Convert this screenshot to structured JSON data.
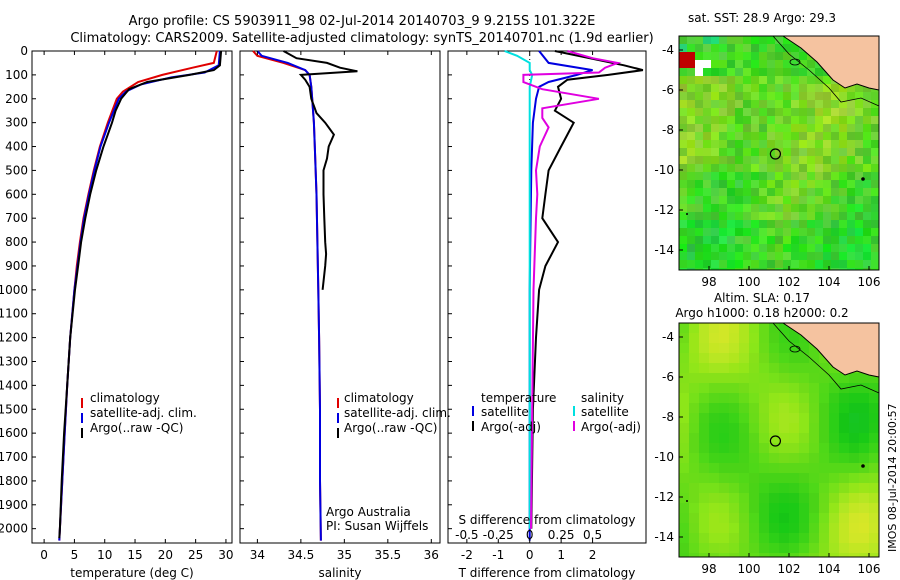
{
  "header": {
    "line1": "Argo profile: CS 5903911_98 02-Jul-2014 20140703_9 9.215S 101.322E",
    "line2": "Climatology: CARS2009. Satellite-adjusted climatology: synTS_20140701.nc (1.9d earlier)"
  },
  "colors": {
    "climatology": "#e00000",
    "satellite": "#0000e0",
    "argo": "#000000",
    "sal_satellite": "#00e0e0",
    "sal_argo": "#e000e0",
    "land": "#f5c3a0"
  },
  "chart_data": [
    {
      "type": "line",
      "name": "temperature-profile",
      "xlabel": "temperature (deg C)",
      "ylabel": "",
      "xticks": [
        "0",
        "5",
        "10",
        "15",
        "20",
        "25",
        "30"
      ],
      "yticks": [
        "0",
        "100",
        "200",
        "300",
        "400",
        "500",
        "600",
        "700",
        "800",
        "900",
        "1000",
        "1100",
        "1200",
        "1300",
        "1400",
        "1500",
        "1600",
        "1700",
        "1800",
        "1900",
        "2000"
      ],
      "xlim": [
        -2,
        31
      ],
      "ylim": [
        2060,
        0
      ],
      "legend": [
        "climatology",
        "satellite-adj. clim.",
        "Argo(..raw -QC)"
      ],
      "legend_position": "lower-right",
      "series": [
        {
          "name": "climatology",
          "depth": [
            0,
            50,
            70,
            100,
            130,
            170,
            200,
            300,
            400,
            500,
            600,
            700,
            800,
            900,
            1000,
            1200,
            1400,
            1600,
            1800,
            2000,
            2050
          ],
          "values": [
            28.5,
            28.0,
            24.5,
            19.5,
            15.5,
            13.0,
            12.0,
            10.5,
            9.2,
            8.2,
            7.3,
            6.5,
            5.9,
            5.4,
            5.0,
            4.3,
            3.8,
            3.4,
            3.0,
            2.6,
            2.5
          ]
        },
        {
          "name": "satellite-adj. clim.",
          "depth": [
            0,
            60,
            90,
            110,
            140,
            170,
            200,
            300,
            400,
            500,
            600,
            700,
            800,
            900,
            1000,
            1200,
            1400,
            1600,
            1800,
            2000,
            2050
          ],
          "values": [
            29.0,
            28.8,
            26.5,
            21.0,
            16.0,
            13.5,
            12.3,
            10.7,
            9.3,
            8.3,
            7.4,
            6.6,
            6.0,
            5.5,
            5.0,
            4.3,
            3.8,
            3.4,
            3.0,
            2.6,
            2.5
          ]
        },
        {
          "name": "Argo(..raw -QC)",
          "depth": [
            0,
            60,
            80,
            100,
            130,
            160,
            200,
            250,
            300,
            350,
            400,
            500,
            600,
            700,
            800,
            900,
            1000,
            1200,
            1400,
            1600,
            1800,
            2000,
            2040
          ],
          "values": [
            29.2,
            29.0,
            28.0,
            24.0,
            17.0,
            14.0,
            12.7,
            11.8,
            11.2,
            10.5,
            9.8,
            8.6,
            7.6,
            6.8,
            6.1,
            5.6,
            5.1,
            4.3,
            3.8,
            3.3,
            2.9,
            2.6,
            2.5
          ]
        }
      ]
    },
    {
      "type": "line",
      "name": "salinity-profile",
      "xlabel": "salinity",
      "xticks": [
        "34",
        "34.5",
        "35",
        "35.5",
        "36"
      ],
      "xlim": [
        33.8,
        36.1
      ],
      "ylim": [
        2060,
        0
      ],
      "legend": [
        "climatology",
        "satellite-adj. clim.",
        "Argo(..raw -QC)"
      ],
      "legend_position": "lower-right",
      "annotation": [
        "Argo Australia",
        "PI: Susan Wijffels"
      ],
      "series": [
        {
          "name": "climatology",
          "depth": [
            0,
            20,
            50,
            80,
            100,
            150,
            200,
            300,
            400,
            600,
            800,
            1000,
            1200,
            1500,
            1800,
            2050
          ],
          "values": [
            33.95,
            34.0,
            34.3,
            34.55,
            34.6,
            34.62,
            34.63,
            34.65,
            34.66,
            34.68,
            34.69,
            34.7,
            34.71,
            34.72,
            34.72,
            34.73
          ]
        },
        {
          "name": "satellite-adj. clim.",
          "depth": [
            0,
            20,
            50,
            80,
            100,
            150,
            200,
            300,
            400,
            600,
            800,
            1000,
            1200,
            1500,
            1800,
            2050
          ],
          "values": [
            34.0,
            34.05,
            34.35,
            34.55,
            34.6,
            34.62,
            34.63,
            34.65,
            34.66,
            34.68,
            34.69,
            34.7,
            34.71,
            34.72,
            34.72,
            34.73
          ]
        },
        {
          "name": "Argo(..raw -QC)",
          "depth": [
            0,
            30,
            50,
            70,
            85,
            100,
            120,
            150,
            200,
            230,
            260,
            300,
            350,
            400,
            450,
            500,
            600,
            700,
            800,
            850,
            900,
            1000
          ],
          "values": [
            34.3,
            34.45,
            34.8,
            34.95,
            35.15,
            34.5,
            34.55,
            34.6,
            34.62,
            34.65,
            34.68,
            34.78,
            34.88,
            34.82,
            34.8,
            34.76,
            34.76,
            34.77,
            34.78,
            34.79,
            34.78,
            34.75
          ]
        }
      ]
    },
    {
      "type": "line",
      "name": "difference-profile",
      "xlabel": "T difference from climatology",
      "xlabel2": "S difference from climatology",
      "xticks": [
        "-2",
        "-1",
        "0",
        "1",
        "2"
      ],
      "xticks2": [
        "-0.5",
        "-0.25",
        "0",
        "0.25",
        "0.5"
      ],
      "xlim": [
        -2.6,
        3.7
      ],
      "ylim": [
        2060,
        0
      ],
      "legend_temperature": [
        "temperature",
        "satellite",
        "Argo(-adj)"
      ],
      "legend_salinity": [
        "salinity",
        "satellite",
        "Argo(-adj)"
      ],
      "series": [
        {
          "name": "T satellite",
          "depth": [
            0,
            50,
            80,
            100,
            130,
            150,
            200,
            300,
            500,
            800,
            1000,
            1500,
            2000,
            2050
          ],
          "values": [
            0.3,
            0.6,
            2.0,
            1.5,
            0.6,
            0.3,
            0.2,
            0.1,
            0.05,
            0.02,
            0.0,
            0.0,
            0.0,
            0.0
          ]
        },
        {
          "name": "T Argo(-adj)",
          "depth": [
            0,
            60,
            80,
            100,
            120,
            150,
            200,
            250,
            300,
            350,
            400,
            500,
            600,
            700,
            800,
            900,
            1000,
            1200,
            1500,
            2000
          ],
          "values": [
            0.8,
            3.0,
            3.6,
            2.5,
            1.2,
            0.9,
            1.0,
            0.8,
            1.4,
            1.2,
            1.0,
            0.6,
            0.5,
            0.4,
            0.9,
            0.5,
            0.3,
            0.2,
            0.1,
            0.05
          ]
        },
        {
          "name": "S satellite",
          "depth": [
            0,
            20,
            50,
            80,
            100,
            150,
            200,
            300,
            500,
            1000,
            2000
          ],
          "values": [
            -0.2,
            -0.1,
            0.0,
            0.0,
            0.02,
            0.0,
            0.0,
            0.0,
            0.0,
            0.0,
            0.0
          ]
        },
        {
          "name": "S Argo(-adj)",
          "depth": [
            0,
            30,
            50,
            70,
            90,
            100,
            130,
            160,
            200,
            240,
            280,
            320,
            400,
            500,
            600,
            700,
            1000,
            1500,
            2000
          ],
          "values": [
            0.3,
            0.5,
            0.7,
            0.6,
            0.55,
            -0.05,
            -0.05,
            0.1,
            0.55,
            0.1,
            0.1,
            0.15,
            0.08,
            0.05,
            0.06,
            0.05,
            0.03,
            0.02,
            0.01
          ]
        }
      ]
    },
    {
      "type": "heatmap",
      "name": "sst-map",
      "title": "sat. SST: 28.9 Argo: 29.3",
      "xticks": [
        "98",
        "100",
        "102",
        "104",
        "106"
      ],
      "yticks": [
        "-4",
        "-6",
        "-8",
        "-10",
        "-12",
        "-14"
      ],
      "xlim": [
        96.5,
        106.5
      ],
      "ylim": [
        -15,
        -3.3
      ],
      "marker": {
        "lon": 101.32,
        "lat": -9.2
      }
    },
    {
      "type": "heatmap",
      "name": "sla-map",
      "title": "Altim. SLA: 0.17",
      "subtitle": "Argo h1000: 0.18 h2000: 0.2",
      "xticks": [
        "98",
        "100",
        "102",
        "104",
        "106"
      ],
      "yticks": [
        "-4",
        "-6",
        "-8",
        "-10",
        "-12",
        "-14"
      ],
      "xlim": [
        96.5,
        106.5
      ],
      "ylim": [
        -15,
        -3.3
      ],
      "marker": {
        "lon": 101.32,
        "lat": -9.2
      }
    }
  ],
  "side_label": "IMOS 08-Jul-2014 20:00:57"
}
